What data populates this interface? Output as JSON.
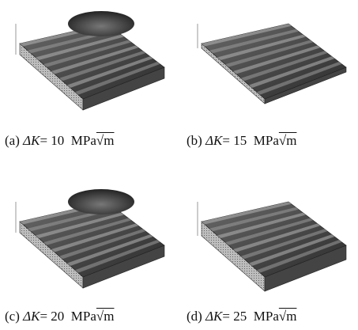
{
  "panels": [
    {
      "label": "(a)",
      "variable": "ΔK",
      "value": "= 10",
      "unit": "MPa",
      "root": "√m"
    },
    {
      "label": "(b)",
      "variable": "ΔK",
      "value": "= 15",
      "unit": "MPa",
      "root": "√m"
    },
    {
      "label": "(c)",
      "variable": "ΔK",
      "value": "= 20",
      "unit": "MPa",
      "root": "√m"
    },
    {
      "label": "(d)",
      "variable": "ΔK",
      "value": "= 25",
      "unit": "MPa",
      "root": "√m"
    }
  ]
}
